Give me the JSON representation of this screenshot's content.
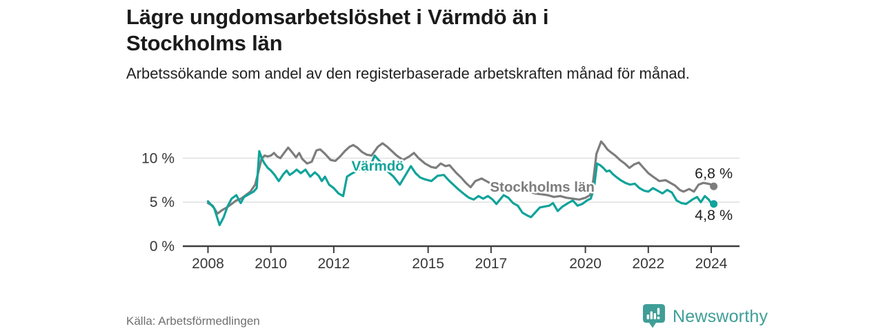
{
  "header": {
    "title": "Lägre ungdomsarbetslöshet i Värmdö än i Stockholms län",
    "subtitle": "Arbetssökande som andel av den registerbaserade arbetskraften månad för månad."
  },
  "footer": {
    "source": "Källa: Arbetsförmedlingen",
    "brand": "Newsworthy",
    "logo_icon": "speech-bubble-bar-chart-icon"
  },
  "colors": {
    "varmdo_teal": "#10a39a",
    "stockholm_gray": "#7d7d7d",
    "axis": "#3d3d3d",
    "grid": "#e2e2e2",
    "tick_text": "#383838",
    "value_label_text": "#1f1f1f",
    "brand_teal": "#3f9e97"
  },
  "chart_data": {
    "type": "line",
    "title": "Lägre ungdomsarbetslöshet i Värmdö än i Stockholms län",
    "subtitle": "Arbetssökande som andel av den registerbaserade arbetskraften månad för månad.",
    "unit": "%",
    "xlabel": "",
    "ylabel": "",
    "xlim": [
      2007.2,
      2024.9
    ],
    "ylim": [
      0,
      12.7
    ],
    "grid": "horizontal",
    "legend": "inline-labels",
    "xticks": [
      {
        "value": 2008,
        "label": "2008"
      },
      {
        "value": 2010,
        "label": "2010"
      },
      {
        "value": 2012,
        "label": "2012"
      },
      {
        "value": 2015,
        "label": "2015"
      },
      {
        "value": 2017,
        "label": "2017"
      },
      {
        "value": 2020,
        "label": "2020"
      },
      {
        "value": 2022,
        "label": "2022"
      },
      {
        "value": 2024,
        "label": "2024"
      }
    ],
    "yticks": [
      {
        "value": 0,
        "label": "0 %"
      },
      {
        "value": 5,
        "label": "5 %"
      },
      {
        "value": 10,
        "label": "10 %"
      }
    ],
    "series": [
      {
        "name": "Stockholms län",
        "color_key": "stockholm_gray",
        "end_label": "6,8 %",
        "end_label_position": "above",
        "end_value": 6.8,
        "inline_label": {
          "year": 2018.63,
          "value": 6.75
        },
        "points": [
          [
            2008.0,
            4.9
          ],
          [
            2008.15,
            4.6
          ],
          [
            2008.3,
            3.7
          ],
          [
            2008.45,
            4.1
          ],
          [
            2008.6,
            4.4
          ],
          [
            2008.75,
            4.8
          ],
          [
            2008.9,
            5.2
          ],
          [
            2009.05,
            5.4
          ],
          [
            2009.2,
            5.8
          ],
          [
            2009.35,
            6.2
          ],
          [
            2009.5,
            7.0
          ],
          [
            2009.6,
            8.4
          ],
          [
            2009.7,
            9.9
          ],
          [
            2009.8,
            10.3
          ],
          [
            2009.9,
            10.2
          ],
          [
            2010.0,
            10.3
          ],
          [
            2010.1,
            10.6
          ],
          [
            2010.2,
            10.2
          ],
          [
            2010.3,
            10.0
          ],
          [
            2010.42,
            10.6
          ],
          [
            2010.55,
            11.2
          ],
          [
            2010.67,
            10.7
          ],
          [
            2010.8,
            10.1
          ],
          [
            2010.9,
            10.6
          ],
          [
            2011.0,
            9.9
          ],
          [
            2011.15,
            9.4
          ],
          [
            2011.3,
            9.6
          ],
          [
            2011.45,
            10.9
          ],
          [
            2011.57,
            11.0
          ],
          [
            2011.72,
            10.5
          ],
          [
            2011.9,
            9.8
          ],
          [
            2012.05,
            9.7
          ],
          [
            2012.2,
            10.2
          ],
          [
            2012.35,
            10.8
          ],
          [
            2012.5,
            11.3
          ],
          [
            2012.62,
            11.5
          ],
          [
            2012.75,
            11.2
          ],
          [
            2012.9,
            10.7
          ],
          [
            2013.05,
            10.4
          ],
          [
            2013.2,
            10.3
          ],
          [
            2013.4,
            11.3
          ],
          [
            2013.55,
            11.7
          ],
          [
            2013.7,
            11.3
          ],
          [
            2013.85,
            10.8
          ],
          [
            2014.0,
            10.3
          ],
          [
            2014.2,
            9.8
          ],
          [
            2014.4,
            10.2
          ],
          [
            2014.55,
            10.6
          ],
          [
            2014.7,
            10.0
          ],
          [
            2014.9,
            9.4
          ],
          [
            2015.1,
            9.0
          ],
          [
            2015.25,
            8.9
          ],
          [
            2015.4,
            9.4
          ],
          [
            2015.55,
            9.1
          ],
          [
            2015.68,
            9.2
          ],
          [
            2015.9,
            8.3
          ],
          [
            2016.05,
            7.8
          ],
          [
            2016.2,
            7.2
          ],
          [
            2016.35,
            6.7
          ],
          [
            2016.5,
            7.4
          ],
          [
            2016.7,
            7.7
          ],
          [
            2016.85,
            7.4
          ],
          [
            2017.0,
            7.1
          ],
          [
            2017.15,
            6.9
          ],
          [
            2017.3,
            6.7
          ],
          [
            2017.45,
            7.0
          ],
          [
            2017.6,
            6.8
          ],
          [
            2017.8,
            6.5
          ],
          [
            2018.0,
            6.3
          ],
          [
            2018.2,
            6.2
          ],
          [
            2018.4,
            6.0
          ],
          [
            2018.6,
            5.9
          ],
          [
            2018.8,
            5.8
          ],
          [
            2019.0,
            5.6
          ],
          [
            2019.2,
            5.7
          ],
          [
            2019.4,
            5.5
          ],
          [
            2019.6,
            5.4
          ],
          [
            2019.8,
            5.3
          ],
          [
            2020.0,
            5.5
          ],
          [
            2020.15,
            5.8
          ],
          [
            2020.25,
            7.5
          ],
          [
            2020.35,
            10.5
          ],
          [
            2020.5,
            11.9
          ],
          [
            2020.6,
            11.5
          ],
          [
            2020.7,
            11.0
          ],
          [
            2020.8,
            10.7
          ],
          [
            2020.95,
            10.3
          ],
          [
            2021.1,
            9.8
          ],
          [
            2021.25,
            9.4
          ],
          [
            2021.4,
            8.9
          ],
          [
            2021.55,
            9.3
          ],
          [
            2021.7,
            9.5
          ],
          [
            2021.85,
            8.9
          ],
          [
            2022.0,
            8.3
          ],
          [
            2022.15,
            7.9
          ],
          [
            2022.35,
            7.4
          ],
          [
            2022.55,
            7.5
          ],
          [
            2022.7,
            7.2
          ],
          [
            2022.85,
            6.9
          ],
          [
            2023.0,
            6.4
          ],
          [
            2023.12,
            6.2
          ],
          [
            2023.3,
            6.5
          ],
          [
            2023.45,
            6.2
          ],
          [
            2023.6,
            7.0
          ],
          [
            2023.75,
            7.2
          ],
          [
            2023.9,
            7.1
          ],
          [
            2024.0,
            7.0
          ],
          [
            2024.08,
            6.8
          ]
        ]
      },
      {
        "name": "Värmdö",
        "color_key": "varmdo_teal",
        "end_label": "4,8 %",
        "end_label_position": "below",
        "end_value": 4.8,
        "inline_label": {
          "year": 2013.4,
          "value": 9.15
        },
        "points": [
          [
            2008.0,
            5.1
          ],
          [
            2008.2,
            4.3
          ],
          [
            2008.37,
            2.4
          ],
          [
            2008.5,
            3.3
          ],
          [
            2008.62,
            4.5
          ],
          [
            2008.75,
            5.4
          ],
          [
            2008.9,
            5.8
          ],
          [
            2009.04,
            4.9
          ],
          [
            2009.15,
            5.6
          ],
          [
            2009.3,
            5.9
          ],
          [
            2009.45,
            6.2
          ],
          [
            2009.55,
            6.6
          ],
          [
            2009.63,
            10.8
          ],
          [
            2009.72,
            9.9
          ],
          [
            2009.8,
            9.4
          ],
          [
            2009.9,
            8.9
          ],
          [
            2010.0,
            8.6
          ],
          [
            2010.12,
            8.1
          ],
          [
            2010.25,
            7.4
          ],
          [
            2010.4,
            8.2
          ],
          [
            2010.5,
            8.6
          ],
          [
            2010.6,
            8.1
          ],
          [
            2010.72,
            8.4
          ],
          [
            2010.82,
            8.7
          ],
          [
            2010.95,
            8.3
          ],
          [
            2011.1,
            8.7
          ],
          [
            2011.25,
            7.9
          ],
          [
            2011.4,
            8.4
          ],
          [
            2011.52,
            8.0
          ],
          [
            2011.62,
            7.4
          ],
          [
            2011.72,
            7.9
          ],
          [
            2011.85,
            7.0
          ],
          [
            2012.0,
            6.6
          ],
          [
            2012.15,
            6.0
          ],
          [
            2012.3,
            5.7
          ],
          [
            2012.42,
            7.9
          ],
          [
            2012.55,
            8.2
          ],
          [
            2012.7,
            8.5
          ],
          [
            2012.85,
            8.8
          ],
          [
            2013.0,
            8.5
          ],
          [
            2013.15,
            9.0
          ],
          [
            2013.3,
            10.3
          ],
          [
            2013.45,
            9.7
          ],
          [
            2013.6,
            9.0
          ],
          [
            2013.75,
            8.4
          ],
          [
            2013.9,
            7.9
          ],
          [
            2014.1,
            7.0
          ],
          [
            2014.3,
            8.2
          ],
          [
            2014.45,
            9.1
          ],
          [
            2014.6,
            8.3
          ],
          [
            2014.75,
            7.8
          ],
          [
            2014.9,
            7.6
          ],
          [
            2015.1,
            7.4
          ],
          [
            2015.3,
            8.0
          ],
          [
            2015.5,
            8.1
          ],
          [
            2015.65,
            7.5
          ],
          [
            2015.8,
            7.0
          ],
          [
            2015.95,
            6.5
          ],
          [
            2016.15,
            5.9
          ],
          [
            2016.3,
            5.5
          ],
          [
            2016.45,
            5.3
          ],
          [
            2016.6,
            5.7
          ],
          [
            2016.75,
            5.4
          ],
          [
            2016.9,
            5.7
          ],
          [
            2017.05,
            5.3
          ],
          [
            2017.17,
            4.8
          ],
          [
            2017.4,
            5.8
          ],
          [
            2017.55,
            5.5
          ],
          [
            2017.7,
            4.9
          ],
          [
            2017.85,
            4.6
          ],
          [
            2018.0,
            3.8
          ],
          [
            2018.15,
            3.5
          ],
          [
            2018.27,
            3.3
          ],
          [
            2018.4,
            3.8
          ],
          [
            2018.55,
            4.4
          ],
          [
            2018.7,
            4.5
          ],
          [
            2018.85,
            4.6
          ],
          [
            2018.97,
            4.9
          ],
          [
            2019.12,
            4.0
          ],
          [
            2019.27,
            4.5
          ],
          [
            2019.45,
            4.9
          ],
          [
            2019.6,
            5.2
          ],
          [
            2019.75,
            4.6
          ],
          [
            2019.9,
            4.8
          ],
          [
            2020.05,
            5.2
          ],
          [
            2020.17,
            5.4
          ],
          [
            2020.27,
            6.5
          ],
          [
            2020.37,
            9.4
          ],
          [
            2020.47,
            9.2
          ],
          [
            2020.57,
            8.9
          ],
          [
            2020.67,
            8.5
          ],
          [
            2020.77,
            8.6
          ],
          [
            2020.87,
            8.2
          ],
          [
            2020.97,
            7.9
          ],
          [
            2021.12,
            7.5
          ],
          [
            2021.27,
            7.2
          ],
          [
            2021.42,
            7.0
          ],
          [
            2021.57,
            7.1
          ],
          [
            2021.72,
            6.6
          ],
          [
            2021.87,
            6.3
          ],
          [
            2022.0,
            6.2
          ],
          [
            2022.15,
            6.6
          ],
          [
            2022.3,
            6.3
          ],
          [
            2022.45,
            6.0
          ],
          [
            2022.6,
            6.4
          ],
          [
            2022.75,
            6.1
          ],
          [
            2022.9,
            5.2
          ],
          [
            2023.05,
            4.9
          ],
          [
            2023.2,
            4.8
          ],
          [
            2023.4,
            5.3
          ],
          [
            2023.55,
            5.6
          ],
          [
            2023.67,
            5.0
          ],
          [
            2023.8,
            5.7
          ],
          [
            2023.92,
            5.3
          ],
          [
            2024.0,
            4.9
          ],
          [
            2024.08,
            4.8
          ]
        ]
      }
    ]
  }
}
